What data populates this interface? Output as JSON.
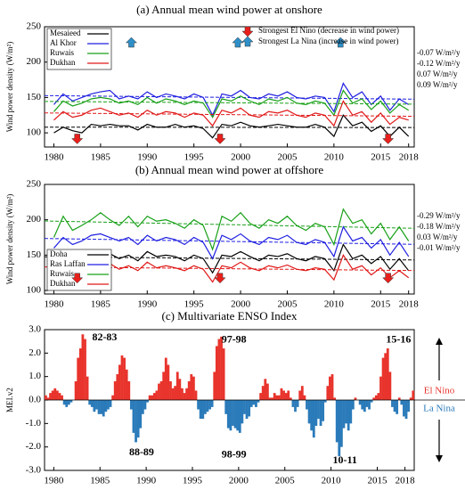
{
  "chart_data": [
    {
      "type": "line",
      "title": "(a)  Annual mean wind power at onshore",
      "ylabel": "Wind power density (W/m²)",
      "x": [
        1980,
        1981,
        1982,
        1983,
        1984,
        1985,
        1986,
        1987,
        1988,
        1989,
        1990,
        1991,
        1992,
        1993,
        1994,
        1995,
        1996,
        1997,
        1998,
        1999,
        2000,
        2001,
        2002,
        2003,
        2004,
        2005,
        2006,
        2007,
        2008,
        2009,
        2010,
        2011,
        2012,
        2013,
        2014,
        2015,
        2016,
        2017,
        2018
      ],
      "xlim": [
        1979,
        2018.6
      ],
      "xticks": [
        1980,
        1985,
        1990,
        1995,
        2000,
        2005,
        2010,
        2015,
        2018
      ],
      "ylim": [
        80,
        250
      ],
      "yticks": [
        100,
        150,
        200,
        250
      ],
      "legend": "upper left",
      "series": [
        {
          "name": "Mesaieed",
          "color": "#000000",
          "trend_label": "0.09 W/m²/y",
          "values": [
            100,
            108,
            103,
            100,
            112,
            110,
            112,
            110,
            110,
            104,
            112,
            108,
            108,
            112,
            108,
            110,
            106,
            93,
            112,
            110,
            115,
            110,
            108,
            110,
            112,
            110,
            108,
            108,
            112,
            108,
            95,
            125,
            110,
            115,
            102,
            110,
            95,
            108,
            95
          ]
        },
        {
          "name": "Al Khor",
          "color": "#1f1fe0",
          "trend_label": "-0.07 W/m²/y",
          "values": [
            140,
            155,
            145,
            150,
            155,
            158,
            160,
            148,
            152,
            148,
            158,
            150,
            155,
            152,
            148,
            155,
            150,
            125,
            155,
            152,
            160,
            150,
            148,
            155,
            152,
            158,
            150,
            148,
            152,
            150,
            130,
            170,
            150,
            158,
            140,
            152,
            132,
            148,
            140
          ]
        },
        {
          "name": "Ruwais",
          "color": "#18a018",
          "trend_label": "-0.12 W/m²/y",
          "values": [
            130,
            145,
            138,
            142,
            148,
            150,
            148,
            142,
            145,
            140,
            150,
            142,
            148,
            145,
            140,
            145,
            142,
            122,
            148,
            145,
            152,
            145,
            140,
            148,
            145,
            150,
            142,
            140,
            145,
            142,
            125,
            160,
            142,
            148,
            133,
            145,
            128,
            140,
            132
          ]
        },
        {
          "name": "Dukhan",
          "color": "#e01818",
          "trend_label": "0.07 W/m²/y",
          "values": [
            118,
            130,
            122,
            125,
            132,
            135,
            130,
            125,
            128,
            122,
            132,
            125,
            130,
            128,
            122,
            128,
            125,
            110,
            132,
            128,
            135,
            125,
            122,
            130,
            128,
            132,
            125,
            122,
            128,
            125,
            110,
            145,
            125,
            130,
            115,
            128,
            112,
            122,
            118
          ]
        }
      ],
      "events": [
        {
          "name": "Strongest El Nino  (decrease in wind power)",
          "color": "#e8201c",
          "x": [
            1982.5,
            1997.8,
            2015.8
          ]
        },
        {
          "name": "Strongest La Nina  (increase in wind power)",
          "color": "#2f8fc8",
          "x": [
            1988.3,
            1999.7,
            2010.7
          ]
        }
      ]
    },
    {
      "type": "line",
      "title": "(b)  Annual mean wind power at offshore",
      "ylabel": "Wind power density (W/m²)",
      "x": [
        1980,
        1981,
        1982,
        1983,
        1984,
        1985,
        1986,
        1987,
        1988,
        1989,
        1990,
        1991,
        1992,
        1993,
        1994,
        1995,
        1996,
        1997,
        1998,
        1999,
        2000,
        2001,
        2002,
        2003,
        2004,
        2005,
        2006,
        2007,
        2008,
        2009,
        2010,
        2011,
        2012,
        2013,
        2014,
        2015,
        2016,
        2017,
        2018
      ],
      "xlim": [
        1979,
        2018.6
      ],
      "xticks": [
        1980,
        1985,
        1990,
        1995,
        2000,
        2005,
        2010,
        2015,
        2018
      ],
      "ylim": [
        95,
        250
      ],
      "yticks": [
        100,
        150,
        200,
        250
      ],
      "legend": "lower left",
      "series": [
        {
          "name": "Doha",
          "color": "#000000",
          "trend_label": "0.03 W/m²/y",
          "values": [
            135,
            148,
            138,
            140,
            150,
            155,
            152,
            145,
            150,
            142,
            155,
            148,
            150,
            148,
            142,
            150,
            145,
            125,
            150,
            148,
            155,
            148,
            142,
            150,
            148,
            152,
            145,
            142,
            148,
            145,
            128,
            165,
            145,
            150,
            138,
            148,
            130,
            145,
            128
          ]
        },
        {
          "name": "Ras Laffan",
          "color": "#1f1fe0",
          "trend_label": "-0.18 W/m²/y",
          "values": [
            160,
            175,
            165,
            170,
            178,
            180,
            175,
            170,
            175,
            165,
            178,
            170,
            175,
            172,
            165,
            175,
            168,
            145,
            178,
            172,
            180,
            170,
            165,
            175,
            172,
            178,
            168,
            165,
            172,
            168,
            148,
            190,
            170,
            175,
            160,
            172,
            150,
            168,
            148
          ]
        },
        {
          "name": "Ruwais",
          "color": "#18a018",
          "trend_label": "-0.29 W/m²/y",
          "values": [
            175,
            205,
            185,
            192,
            200,
            210,
            200,
            192,
            205,
            190,
            205,
            198,
            200,
            195,
            188,
            200,
            192,
            158,
            205,
            198,
            210,
            195,
            188,
            200,
            195,
            205,
            192,
            185,
            195,
            190,
            165,
            215,
            195,
            200,
            180,
            195,
            172,
            190,
            170
          ]
        },
        {
          "name": "Dukhan",
          "color": "#e01818",
          "trend_label": "-0.01 W/m²/y",
          "values": [
            122,
            135,
            125,
            128,
            135,
            140,
            138,
            130,
            135,
            128,
            140,
            132,
            135,
            132,
            128,
            135,
            130,
            112,
            135,
            132,
            140,
            132,
            128,
            135,
            132,
            136,
            130,
            128,
            132,
            130,
            115,
            150,
            130,
            135,
            122,
            132,
            118,
            128,
            118
          ]
        }
      ],
      "events": [
        {
          "color": "#e8201c",
          "x": [
            1982.5,
            1997.8,
            2015.8
          ]
        }
      ]
    },
    {
      "type": "bar",
      "title": "(c)  Multivariate ENSO Index",
      "ylabel": "MEI.v2",
      "xlim": [
        1979,
        2019
      ],
      "xticks": [
        1980,
        1985,
        1990,
        1995,
        2000,
        2005,
        2010,
        2015,
        2018
      ],
      "ylim": [
        -3,
        3
      ],
      "yticks": [
        {
          "value": -3,
          "label": "-3.0"
        },
        {
          "value": -2,
          "label": "-2.0"
        },
        {
          "value": -1,
          "label": "-1.0"
        },
        {
          "value": 0,
          "label": "0.0"
        },
        {
          "value": 1,
          "label": "1.0"
        },
        {
          "value": 2,
          "label": "2.0"
        },
        {
          "value": 3,
          "label": "3.0"
        }
      ],
      "positive_color": "#e8342c",
      "negative_color": "#2b7bba",
      "positive_label": "El Nino",
      "negative_label": "La Nina",
      "annotations": [
        "82-83",
        "97-98",
        "15-16",
        "88-89",
        "98-99",
        "10-11"
      ],
      "x": [
        1979,
        1979.25,
        1979.5,
        1979.75,
        1980,
        1980.25,
        1980.5,
        1980.75,
        1981,
        1981.25,
        1981.5,
        1981.75,
        1982,
        1982.25,
        1982.5,
        1982.75,
        1983,
        1983.25,
        1983.5,
        1983.75,
        1984,
        1984.25,
        1984.5,
        1984.75,
        1985,
        1985.25,
        1985.5,
        1985.75,
        1986,
        1986.25,
        1986.5,
        1986.75,
        1987,
        1987.25,
        1987.5,
        1987.75,
        1988,
        1988.25,
        1988.5,
        1988.75,
        1989,
        1989.25,
        1989.5,
        1989.75,
        1990,
        1990.25,
        1990.5,
        1990.75,
        1991,
        1991.25,
        1991.5,
        1991.75,
        1992,
        1992.25,
        1992.5,
        1992.75,
        1993,
        1993.25,
        1993.5,
        1993.75,
        1994,
        1994.25,
        1994.5,
        1994.75,
        1995,
        1995.25,
        1995.5,
        1995.75,
        1996,
        1996.25,
        1996.5,
        1996.75,
        1997,
        1997.25,
        1997.5,
        1997.75,
        1998,
        1998.25,
        1998.5,
        1998.75,
        1999,
        1999.25,
        1999.5,
        1999.75,
        2000,
        2000.25,
        2000.5,
        2000.75,
        2001,
        2001.25,
        2001.5,
        2001.75,
        2002,
        2002.25,
        2002.5,
        2002.75,
        2003,
        2003.25,
        2003.5,
        2003.75,
        2004,
        2004.25,
        2004.5,
        2004.75,
        2005,
        2005.25,
        2005.5,
        2005.75,
        2006,
        2006.25,
        2006.5,
        2006.75,
        2007,
        2007.25,
        2007.5,
        2007.75,
        2008,
        2008.25,
        2008.5,
        2008.75,
        2009,
        2009.25,
        2009.5,
        2009.75,
        2010,
        2010.25,
        2010.5,
        2010.75,
        2011,
        2011.25,
        2011.5,
        2011.75,
        2012,
        2012.25,
        2012.5,
        2012.75,
        2013,
        2013.25,
        2013.5,
        2013.75,
        2014,
        2014.25,
        2014.5,
        2014.75,
        2015,
        2015.25,
        2015.5,
        2015.75,
        2016,
        2016.25,
        2016.5,
        2016.75,
        2017,
        2017.25,
        2017.5,
        2017.75,
        2018,
        2018.25,
        2018.5,
        2018.75
      ],
      "values": [
        0.2,
        0.1,
        0.3,
        0.4,
        0.5,
        0.4,
        0.3,
        0.2,
        -0.2,
        -0.3,
        -0.2,
        -0.1,
        0.0,
        0.8,
        1.8,
        2.2,
        2.8,
        2.6,
        1.0,
        -0.2,
        -0.3,
        -0.5,
        -0.4,
        -0.6,
        -0.6,
        -0.7,
        -0.5,
        -0.4,
        -0.3,
        0.2,
        0.8,
        1.1,
        1.5,
        1.9,
        1.8,
        1.3,
        0.8,
        -0.4,
        -1.4,
        -1.8,
        -1.6,
        -1.2,
        -0.6,
        -0.4,
        -0.1,
        0.2,
        0.2,
        0.3,
        0.4,
        0.7,
        0.8,
        1.2,
        1.8,
        1.5,
        0.8,
        0.5,
        0.6,
        1.2,
        0.9,
        0.5,
        0.3,
        0.5,
        0.8,
        1.1,
        1.0,
        0.4,
        -0.4,
        -0.8,
        -0.8,
        -0.6,
        -0.5,
        -0.4,
        -0.3,
        1.2,
        2.3,
        2.6,
        2.7,
        2.2,
        -0.6,
        -1.2,
        -1.3,
        -1.1,
        -1.2,
        -1.3,
        -1.4,
        -1.0,
        -0.6,
        -0.8,
        -0.7,
        -0.3,
        -0.2,
        -0.3,
        -0.1,
        0.3,
        0.6,
        0.9,
        0.7,
        0.1,
        0.1,
        0.3,
        0.2,
        0.2,
        0.5,
        0.4,
        0.3,
        0.4,
        0.1,
        -0.3,
        -0.5,
        -0.3,
        0.4,
        0.6,
        0.2,
        -0.4,
        -1.0,
        -1.3,
        -1.6,
        -1.1,
        -0.8,
        -1.1,
        -0.9,
        -0.1,
        0.6,
        1.0,
        1.1,
        0.1,
        -1.8,
        -2.4,
        -2.0,
        -1.2,
        -1.0,
        -1.3,
        -1.0,
        -0.4,
        0.1,
        0.0,
        -0.2,
        -0.4,
        -0.5,
        -0.3,
        -0.4,
        -0.1,
        0.1,
        0.2,
        0.3,
        1.0,
        1.8,
        2.0,
        2.2,
        1.2,
        -0.3,
        -0.5,
        -0.6,
        0.1,
        -0.2,
        -0.7,
        -0.8,
        -0.5,
        0.1,
        0.4
      ]
    }
  ]
}
